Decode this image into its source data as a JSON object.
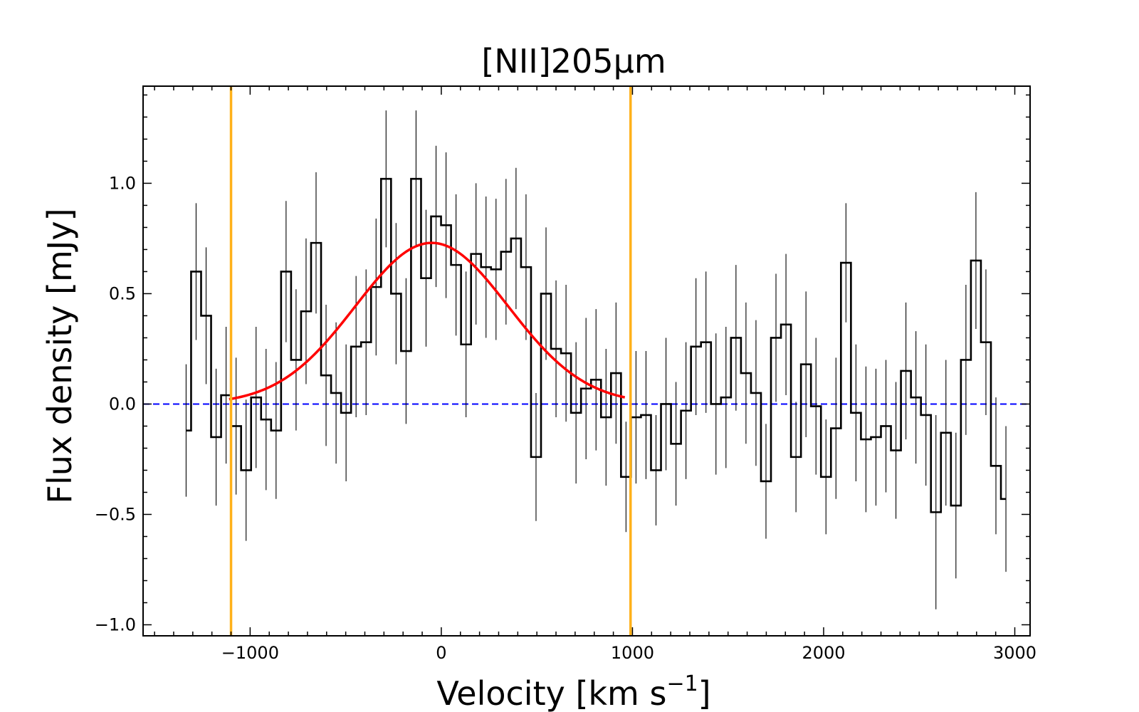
{
  "chart_data": {
    "type": "line",
    "title": "[NII]205μm",
    "xlabel": "Velocity [km s",
    "xlabel_sup": "−1",
    "xlabel_end": "]",
    "ylabel": "Flux density [mJy]",
    "xlim": [
      -1560,
      3080
    ],
    "ylim": [
      -1.05,
      1.44
    ],
    "xticks": [
      -1000,
      0,
      1000,
      2000,
      3000
    ],
    "xtick_labels": [
      "−1000",
      "0",
      "1000",
      "2000",
      "3000"
    ],
    "yticks": [
      -1.0,
      -0.5,
      0.0,
      0.5,
      1.0
    ],
    "ytick_labels": [
      "−1.0",
      "−0.5",
      "0.0",
      "0.5",
      "1.0"
    ],
    "grid": false,
    "colors": {
      "spectrum": "#000000",
      "fit": "#ff0000",
      "zero_line": "#0000ff",
      "markers": "#ffb11a"
    },
    "spectrum": {
      "name": "Observed spectrum",
      "style": "steps-mid with errorbars",
      "x_start": -1335,
      "x_step": 52.3,
      "y": [
        -0.12,
        0.6,
        0.4,
        -0.15,
        0.04,
        -0.1,
        -0.3,
        0.03,
        -0.07,
        -0.12,
        0.6,
        0.2,
        0.42,
        0.73,
        0.13,
        0.05,
        -0.04,
        0.26,
        0.28,
        0.53,
        1.02,
        0.5,
        0.24,
        1.02,
        0.57,
        0.85,
        0.81,
        0.63,
        0.27,
        0.68,
        0.62,
        0.61,
        0.69,
        0.75,
        0.62,
        -0.24,
        0.5,
        0.25,
        0.23,
        -0.04,
        0.07,
        0.11,
        -0.06,
        0.14,
        -0.33,
        -0.06,
        -0.05,
        -0.3,
        0.0,
        -0.18,
        -0.03,
        0.26,
        0.28,
        0.0,
        0.03,
        0.3,
        0.14,
        0.05,
        -0.35,
        0.3,
        0.36,
        -0.24,
        0.18,
        -0.01,
        -0.33,
        -0.11,
        0.64,
        -0.04,
        -0.16,
        -0.15,
        -0.1,
        -0.21,
        0.15,
        0.03,
        -0.05,
        -0.49,
        -0.13,
        -0.46,
        0.2,
        0.65,
        0.28,
        -0.28,
        -0.43
      ],
      "err": [
        0.3,
        0.31,
        0.31,
        0.31,
        0.31,
        0.31,
        0.32,
        0.32,
        0.32,
        0.31,
        0.32,
        0.32,
        0.33,
        0.32,
        0.32,
        0.32,
        0.31,
        0.32,
        0.33,
        0.31,
        0.31,
        0.32,
        0.33,
        0.31,
        0.31,
        0.32,
        0.33,
        0.32,
        0.33,
        0.32,
        0.32,
        0.32,
        0.33,
        0.32,
        0.33,
        0.29,
        0.3,
        0.31,
        0.31,
        0.32,
        0.32,
        0.32,
        0.31,
        0.32,
        0.25,
        0.3,
        0.29,
        0.25,
        0.3,
        0.28,
        0.31,
        0.31,
        0.32,
        0.32,
        0.32,
        0.33,
        0.32,
        0.33,
        0.26,
        0.29,
        0.32,
        0.25,
        0.33,
        0.31,
        0.26,
        0.32,
        0.27,
        0.31,
        0.33,
        0.31,
        0.3,
        0.31,
        0.31,
        0.3,
        0.32,
        0.44,
        0.33,
        0.33,
        0.34,
        0.31,
        0.33,
        0.31,
        0.33
      ]
    },
    "fit": {
      "name": "Gaussian fit",
      "amplitude": 0.73,
      "center": -50,
      "sigma": 400,
      "x_range": [
        -1110,
        960
      ]
    },
    "zero_line": {
      "y": 0.0,
      "style": "dashed"
    },
    "vertical_markers": [
      -1100,
      990
    ]
  }
}
